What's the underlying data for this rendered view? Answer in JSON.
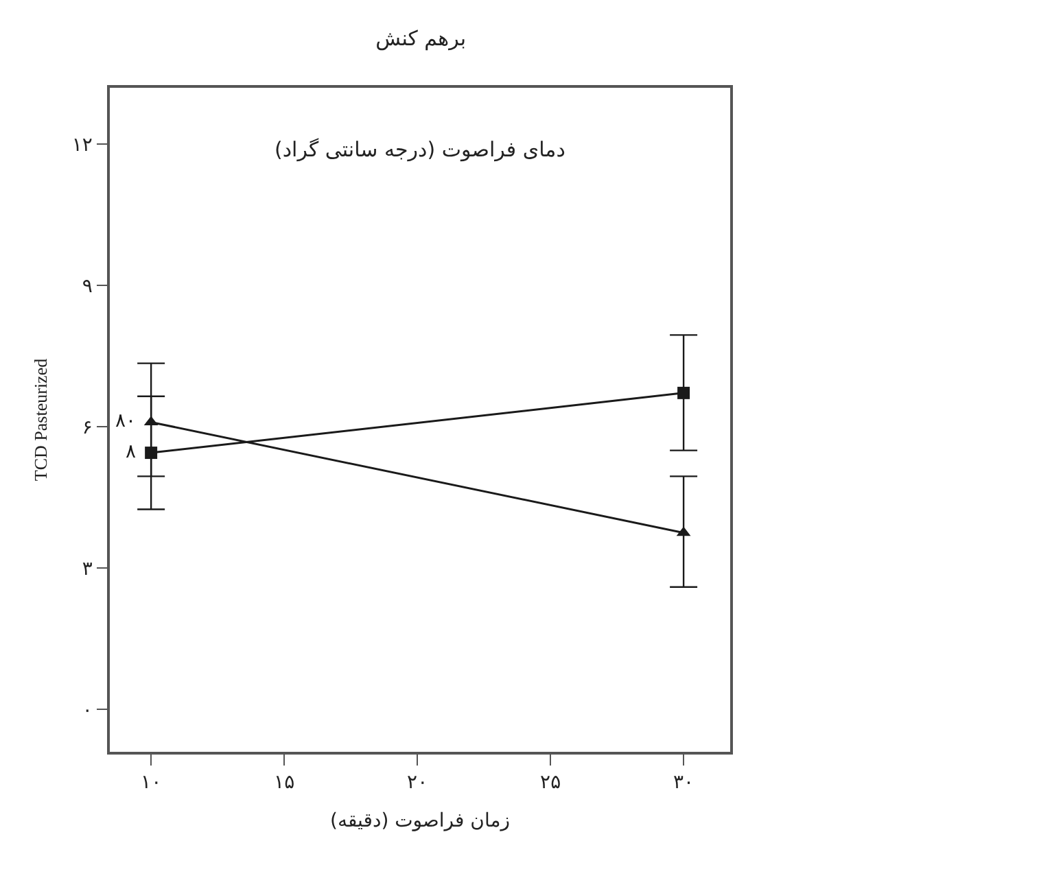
{
  "chart_data": {
    "type": "line",
    "title": "برهم کنش",
    "legend_title": "دمای فراصوت (درجه سانتی گراد)",
    "xlabel": "زمان فراصوت (دقیقه)",
    "ylabel": "TCD Pasteurized",
    "x": [
      10,
      30
    ],
    "series": [
      {
        "name": "۸۰",
        "color": "#1a1a1a",
        "marker": "triangle",
        "values": [
          6.1,
          3.75
        ],
        "errors": [
          [
            4.95,
            7.35
          ],
          [
            2.6,
            4.95
          ]
        ]
      },
      {
        "name": "۸",
        "color": "#1a1a1a",
        "marker": "square",
        "values": [
          5.45,
          6.72
        ],
        "errors": [
          [
            4.25,
            6.65
          ],
          [
            5.5,
            7.95
          ]
        ]
      }
    ],
    "xlim": [
      8.45,
      31.75
    ],
    "xticks": [
      {
        "value": 10,
        "label": "۱۰"
      },
      {
        "value": 15,
        "label": "۱۵"
      },
      {
        "value": 20,
        "label": "۲۰"
      },
      {
        "value": 25,
        "label": "۲۵"
      },
      {
        "value": 30,
        "label": "۳۰"
      }
    ],
    "ylim": [
      -0.9,
      13.2
    ],
    "yticks": [
      {
        "value": 0,
        "label": "۰"
      },
      {
        "value": 3,
        "label": "۳"
      },
      {
        "value": 6,
        "label": "۶"
      },
      {
        "value": 9,
        "label": "۹"
      },
      {
        "value": 12,
        "label": "۱۲"
      }
    ],
    "legend": false,
    "line_style": "solid"
  }
}
